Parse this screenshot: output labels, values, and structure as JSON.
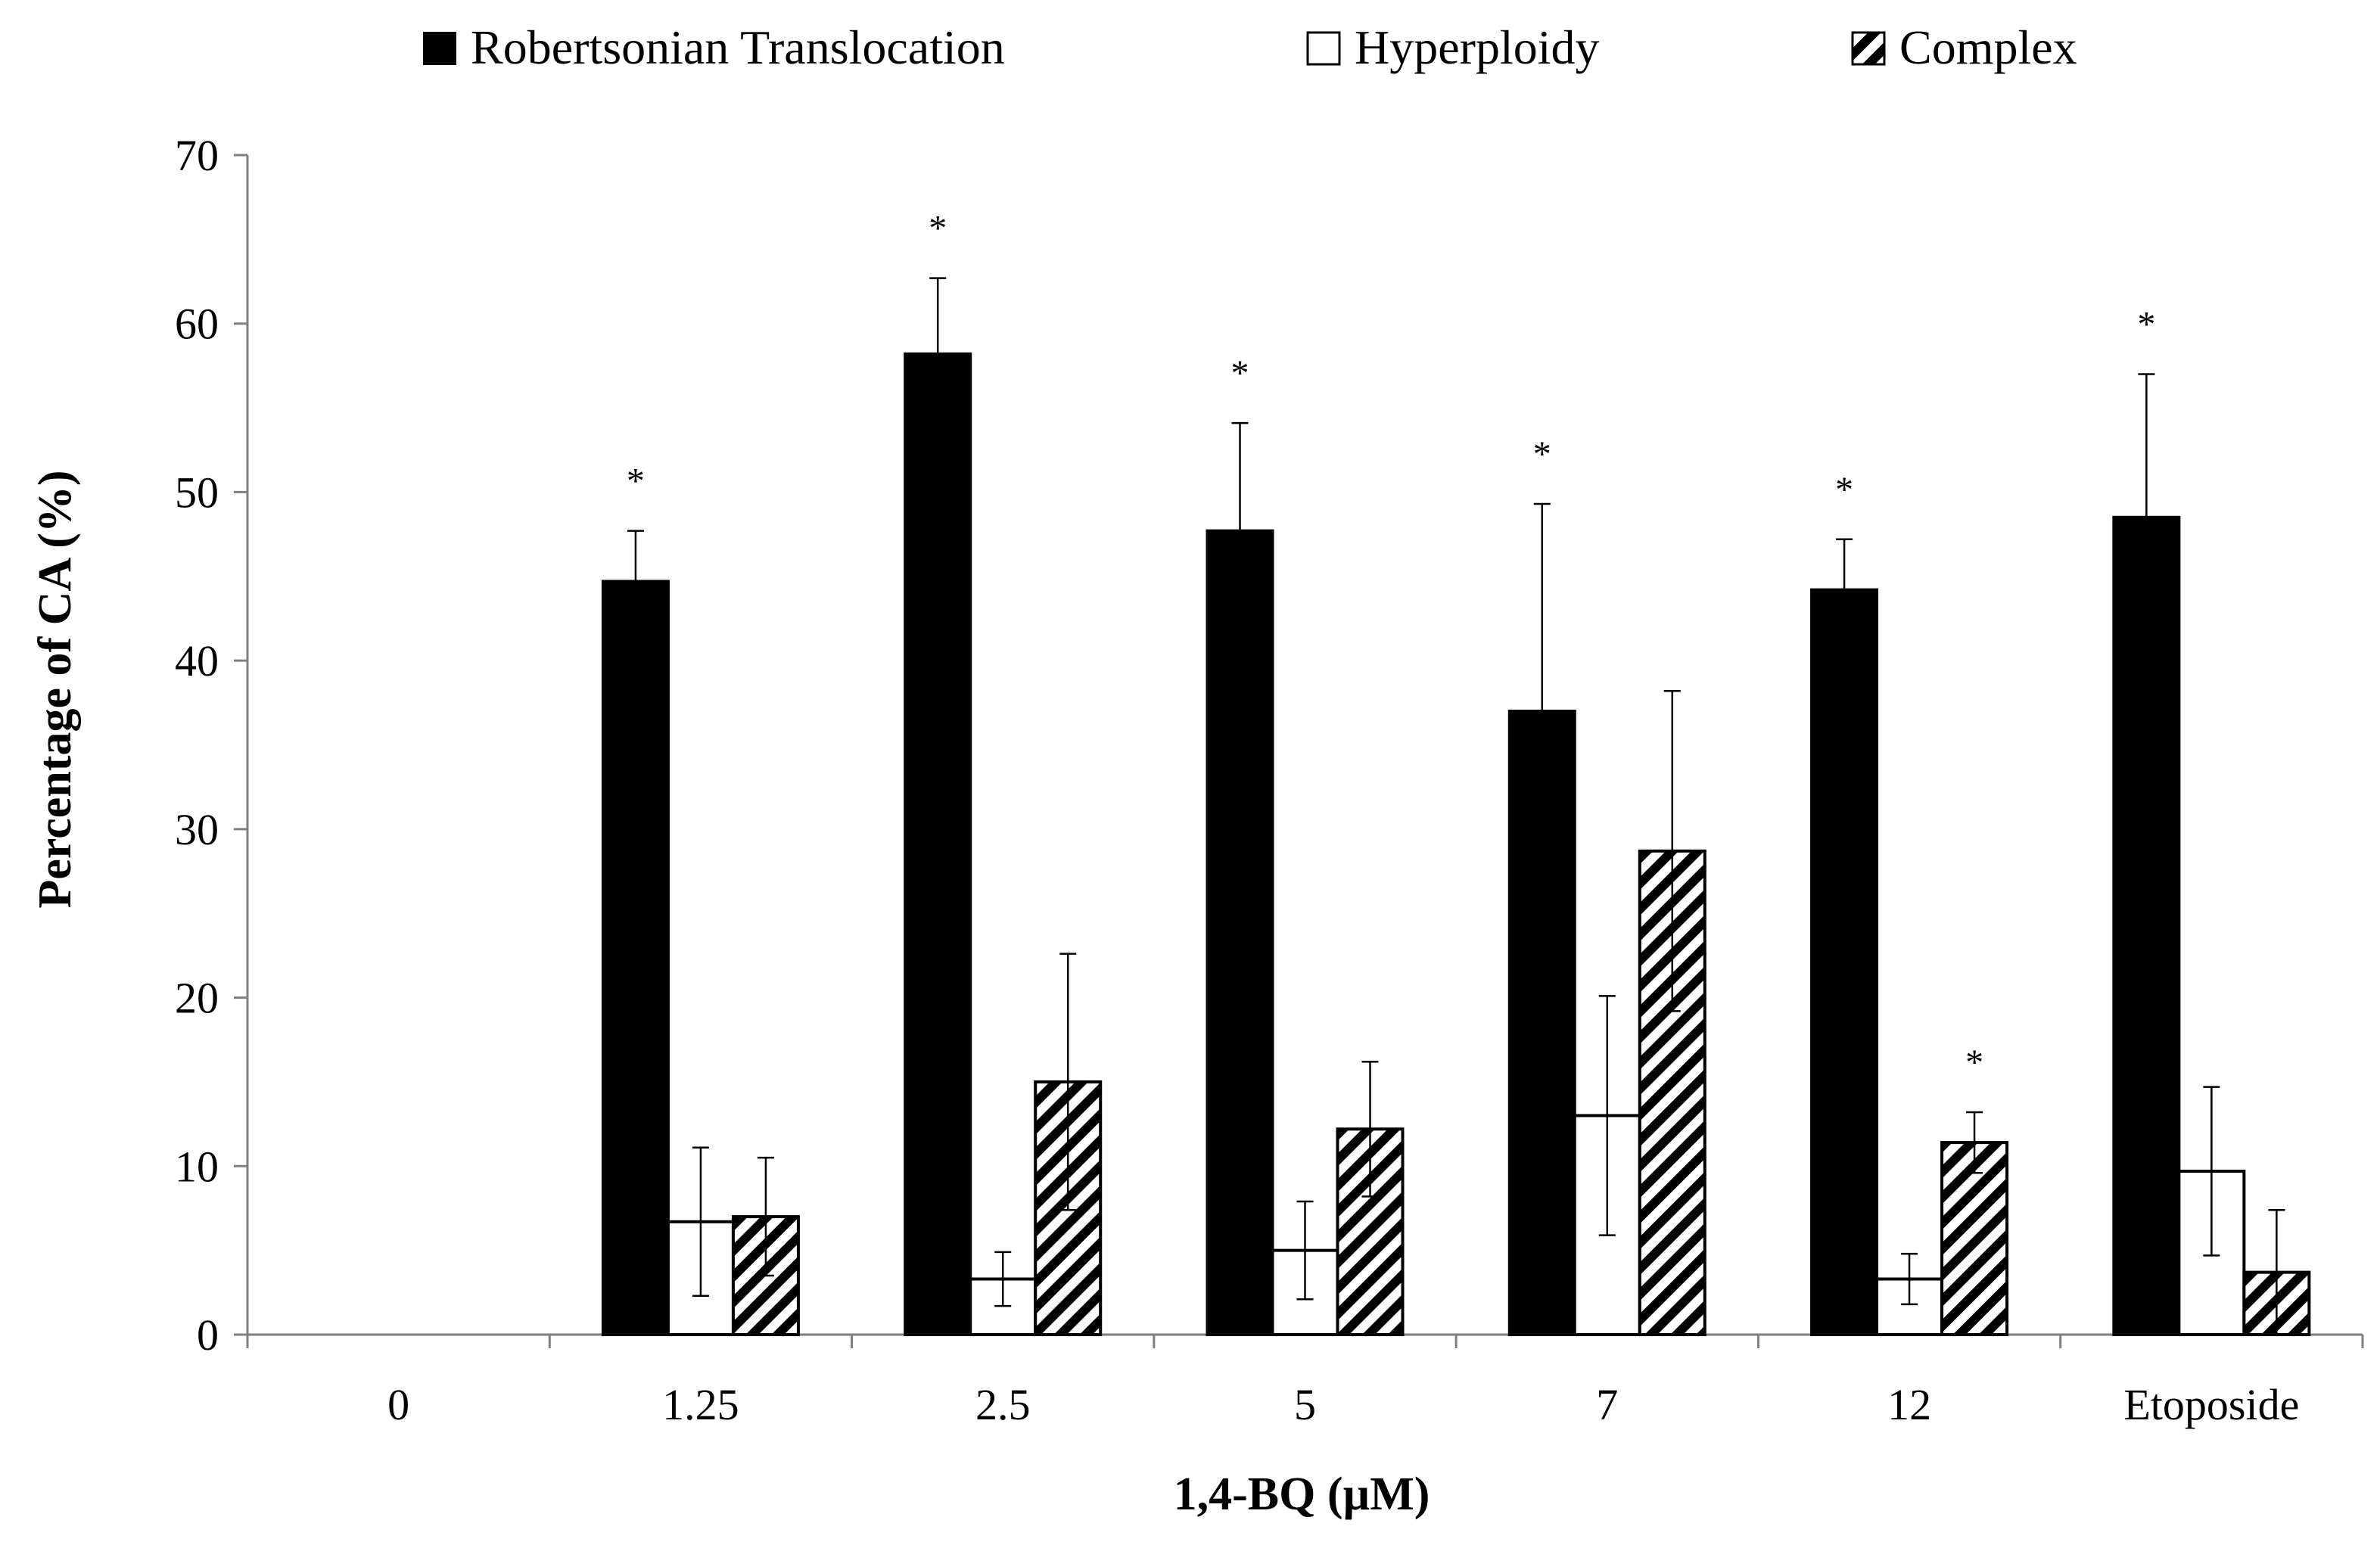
{
  "chart_data": {
    "type": "bar",
    "title": "",
    "xlabel": "1,4-BQ (µM)",
    "ylabel": "Percentage of CA (%)",
    "ylim": [
      0,
      70
    ],
    "yticks": [
      "0",
      "10",
      "20",
      "30",
      "40",
      "50",
      "60",
      "70"
    ],
    "categories": [
      "0",
      "1.25",
      "2.5",
      "5",
      "7",
      "12",
      "Etoposide"
    ],
    "legend_position": "top",
    "grid": false,
    "series": [
      {
        "name": "Robertsonian Translocation",
        "fill": "solid",
        "color": "#000000",
        "values": [
          0,
          44.7,
          58.2,
          47.7,
          37.0,
          44.2,
          48.5
        ],
        "errors": [
          0,
          3.0,
          4.5,
          6.4,
          12.3,
          3.0,
          8.5
        ],
        "significant": [
          false,
          true,
          true,
          true,
          true,
          true,
          true
        ]
      },
      {
        "name": "Hyperploidy",
        "fill": "hollow",
        "color": "#ffffff",
        "values": [
          0,
          6.7,
          3.3,
          5.0,
          13.0,
          3.3,
          9.7
        ],
        "errors": [
          0,
          4.4,
          1.6,
          2.9,
          7.1,
          1.5,
          5.0
        ],
        "significant": [
          false,
          false,
          false,
          false,
          false,
          false,
          false
        ]
      },
      {
        "name": "Complex",
        "fill": "hatched",
        "color": "#000000",
        "values": [
          0,
          7.0,
          15.0,
          12.2,
          28.7,
          11.4,
          3.7
        ],
        "errors": [
          0,
          3.5,
          7.6,
          4.0,
          9.5,
          1.8,
          3.7
        ],
        "significant": [
          false,
          false,
          false,
          false,
          false,
          true,
          false
        ]
      }
    ],
    "significance_marker": "*"
  }
}
